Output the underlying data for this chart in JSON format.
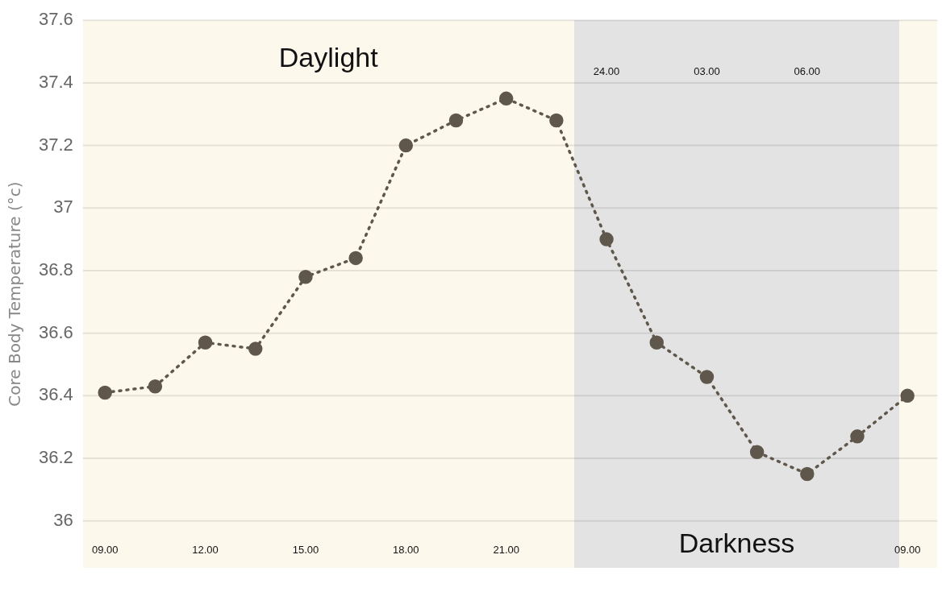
{
  "chart_data": {
    "type": "line",
    "ylabel": "Core Body Temperature (°c)",
    "categories": [
      "09.00",
      null,
      "12.00",
      null,
      "15.00",
      null,
      "18.00",
      null,
      "21.00",
      null,
      "24.00",
      null,
      "03.00",
      null,
      "06.00",
      null,
      "09.00"
    ],
    "series": [
      {
        "color": "#5f574c",
        "values": [
          36.41,
          36.43,
          36.57,
          36.55,
          36.78,
          36.84,
          37.2,
          37.28,
          37.35,
          37.28,
          36.9,
          36.57,
          36.46,
          36.22,
          36.15,
          36.27,
          36.4
        ]
      }
    ],
    "ylim": [
      35.85,
      37.6
    ],
    "yticks": [
      36,
      36.2,
      36.4,
      36.6,
      36.8,
      37,
      37.2,
      37.4,
      37.6
    ],
    "annotations": [
      "Daylight",
      "Darkness"
    ],
    "grid": "y",
    "marker": "circle",
    "line_style": "dotted",
    "legend": false
  }
}
